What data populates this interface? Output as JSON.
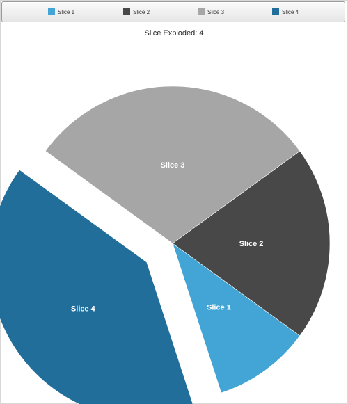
{
  "chart_data": {
    "type": "pie",
    "title": "Slice Exploded: 4",
    "legend_position": "top",
    "slices": [
      {
        "name": "Slice 1",
        "value": 10,
        "color": "#42a5d5"
      },
      {
        "name": "Slice 2",
        "value": 20,
        "color": "#484848"
      },
      {
        "name": "Slice 3",
        "value": 30,
        "color": "#a6a6a6"
      },
      {
        "name": "Slice 4",
        "value": 40,
        "color": "#226e9b"
      }
    ],
    "exploded_slice": "Slice 4"
  }
}
